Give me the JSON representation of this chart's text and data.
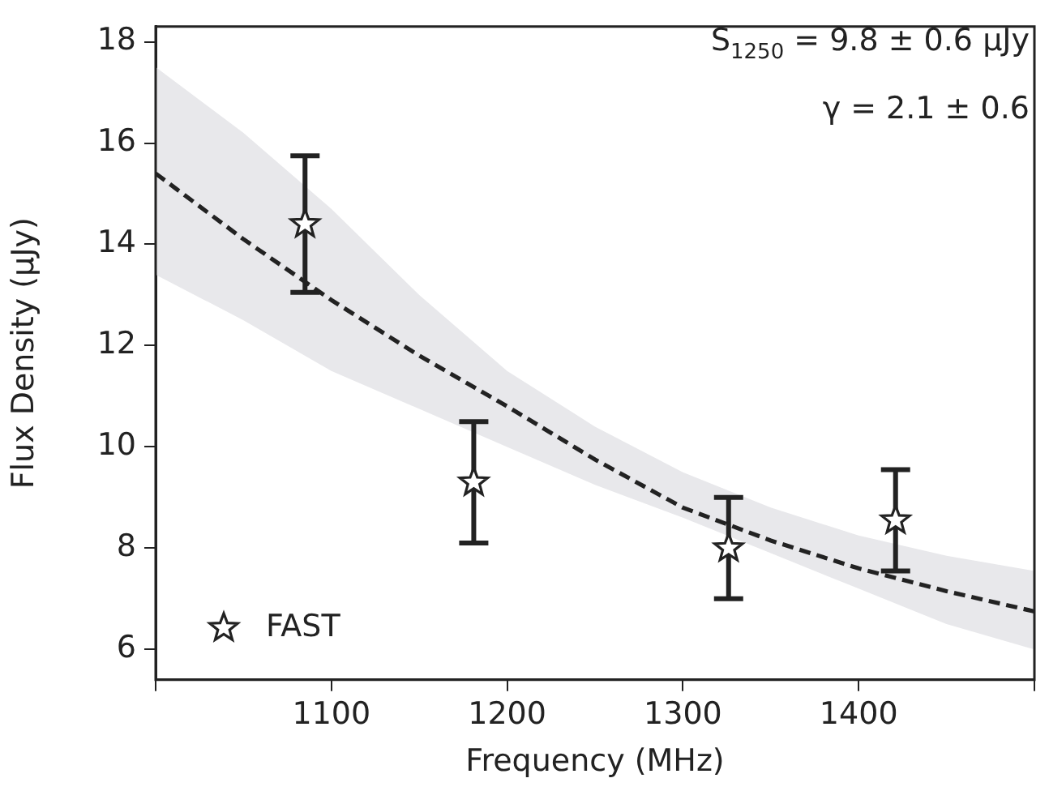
{
  "chart_data": {
    "type": "scatter",
    "xlabel": "Frequency (MHz)",
    "ylabel": "Flux Density (μJy)",
    "xlim": [
      1000,
      1500
    ],
    "xticks": [
      {
        "value": 1000,
        "label": null
      },
      1100,
      1200,
      1300,
      1400,
      {
        "value": 1500,
        "label": null
      }
    ],
    "ylim": [
      5.4,
      18.3
    ],
    "yticks": [
      6,
      8,
      10,
      12,
      14,
      16,
      18
    ],
    "grid": false,
    "legend": "bottom left",
    "annotations": [
      "S$_{1250}$ = 9.8 ± 0.6 μJy",
      "γ = 2.1 ± 0.6"
    ],
    "series": [
      {
        "type": "line",
        "color": "#222222",
        "line_style": "dashed",
        "marker": "none",
        "x": [
          1000,
          1050,
          1100,
          1150,
          1200,
          1250,
          1300,
          1350,
          1400,
          1450,
          1500
        ],
        "values": [
          15.4,
          14.1,
          12.9,
          11.8,
          10.8,
          9.75,
          8.8,
          8.15,
          7.6,
          7.15,
          6.75
        ],
        "lower": [
          13.4,
          12.5,
          11.5,
          10.75,
          10.0,
          9.25,
          8.6,
          7.9,
          7.2,
          6.5,
          6.0
        ],
        "upper": [
          17.5,
          16.2,
          14.7,
          13.0,
          11.5,
          10.4,
          9.5,
          8.8,
          8.25,
          7.85,
          7.55
        ]
      },
      {
        "name": "FAST",
        "color": "#222222",
        "marker": "star",
        "x": [
          1085,
          1181,
          1326,
          1421
        ],
        "values": [
          14.4,
          9.3,
          8.0,
          8.55
        ],
        "errors": [
          1.35,
          1.2,
          1.0,
          1.0
        ]
      }
    ]
  }
}
